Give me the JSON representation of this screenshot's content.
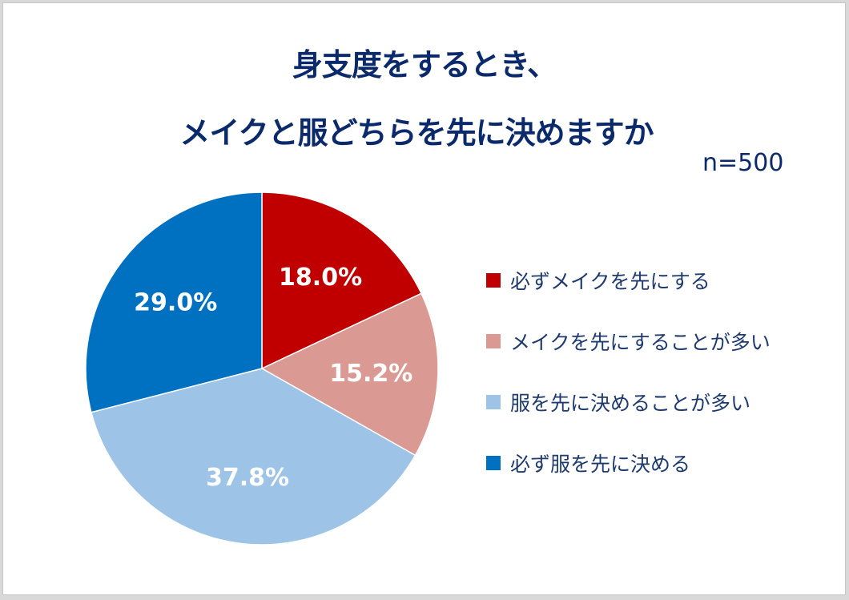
{
  "chart_data": {
    "type": "pie",
    "title": "身支度をするとき、メイクと服どちらを先に決めますか",
    "title_lines": [
      "身支度をするとき、",
      "メイクと服どちらを先に決めますか"
    ],
    "sample_size_label": "n=500",
    "categories": [
      "必ずメイクを先にする",
      "メイクを先にすることが多い",
      "服を先に決めることが多い",
      "必ず服を先に決める"
    ],
    "values": [
      18.0,
      15.2,
      37.8,
      29.0
    ],
    "value_labels": [
      "18.0%",
      "15.2%",
      "37.8%",
      "29.0%"
    ],
    "colors": [
      "#c00000",
      "#da9a93",
      "#9dc3e6",
      "#0070c0"
    ],
    "start_angle": "12 o'clock, clockwise",
    "legend_position": "right",
    "unit": "%"
  },
  "legend": {
    "items": [
      {
        "label": "必ずメイクを先にする",
        "color": "#c00000"
      },
      {
        "label": "メイクを先にすることが多い",
        "color": "#da9a93"
      },
      {
        "label": "服を先に決めることが多い",
        "color": "#9dc3e6"
      },
      {
        "label": "必ず服を先に決める",
        "color": "#0070c0"
      }
    ]
  }
}
